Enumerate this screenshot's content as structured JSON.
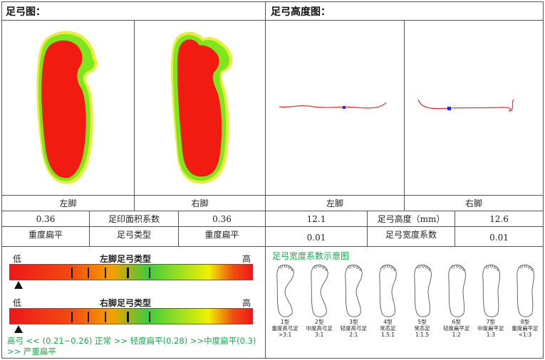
{
  "sections": {
    "footprint_title": "足弓图：",
    "height_title": "足弓高度图："
  },
  "footprint": {
    "left_label": "左脚",
    "right_label": "右脚"
  },
  "height_chart": {
    "left_label": "左脚",
    "right_label": "右脚"
  },
  "table": {
    "left_area_value": "0.36",
    "area_label": "足印面积系数",
    "right_area_value": "0.36",
    "left_type_value": "重度扁平",
    "type_label": "足弓类型",
    "right_type_value": "重度扁平",
    "left_height_value": "12.1",
    "height_label": "足弓高度（mm）",
    "right_height_value": "12.6",
    "left_width_value": "0.01",
    "width_label": "足弓宽度系数",
    "right_width_value": "0.01"
  },
  "scales": {
    "low": "低",
    "high": "高",
    "left_title": "左脚足弓类型",
    "right_title": "右脚足弓类型",
    "left_marker_fraction": 0.02,
    "right_marker_fraction": 0.02,
    "tick_fractions": [
      0.25,
      0.32,
      0.39,
      0.48,
      0.57
    ],
    "legend": "高弓 << (0.21~0.26) 正常 >> 轻度扁平(0.28) >>中度扁平(0.3) >> 严重扁平"
  },
  "diagram": {
    "title": "足弓宽度系数示意图",
    "types": [
      {
        "name": "1型",
        "desc": "重度高弓足",
        "ratio": ">3:1"
      },
      {
        "name": "2型",
        "desc": "中度高弓足",
        "ratio": "3:1"
      },
      {
        "name": "3型",
        "desc": "轻度高弓足",
        "ratio": "2:1"
      },
      {
        "name": "4型",
        "desc": "常态足",
        "ratio": "1.5:1"
      },
      {
        "name": "5型",
        "desc": "常态足",
        "ratio": "1:1.5"
      },
      {
        "name": "6型",
        "desc": "轻度扁平足",
        "ratio": "1:2"
      },
      {
        "name": "7型",
        "desc": "中度扁平足",
        "ratio": "1:3"
      },
      {
        "name": "8型",
        "desc": "重度扁平足",
        "ratio": "<1:3"
      }
    ]
  },
  "colors": {
    "footprint_core": "#f21b12",
    "footprint_mid": "#7ee61c",
    "footprint_edge": "#e8ee3a",
    "arch_line": "#e53030",
    "arch_marker": "#2233cc",
    "accent_green": "#1aa84a"
  }
}
